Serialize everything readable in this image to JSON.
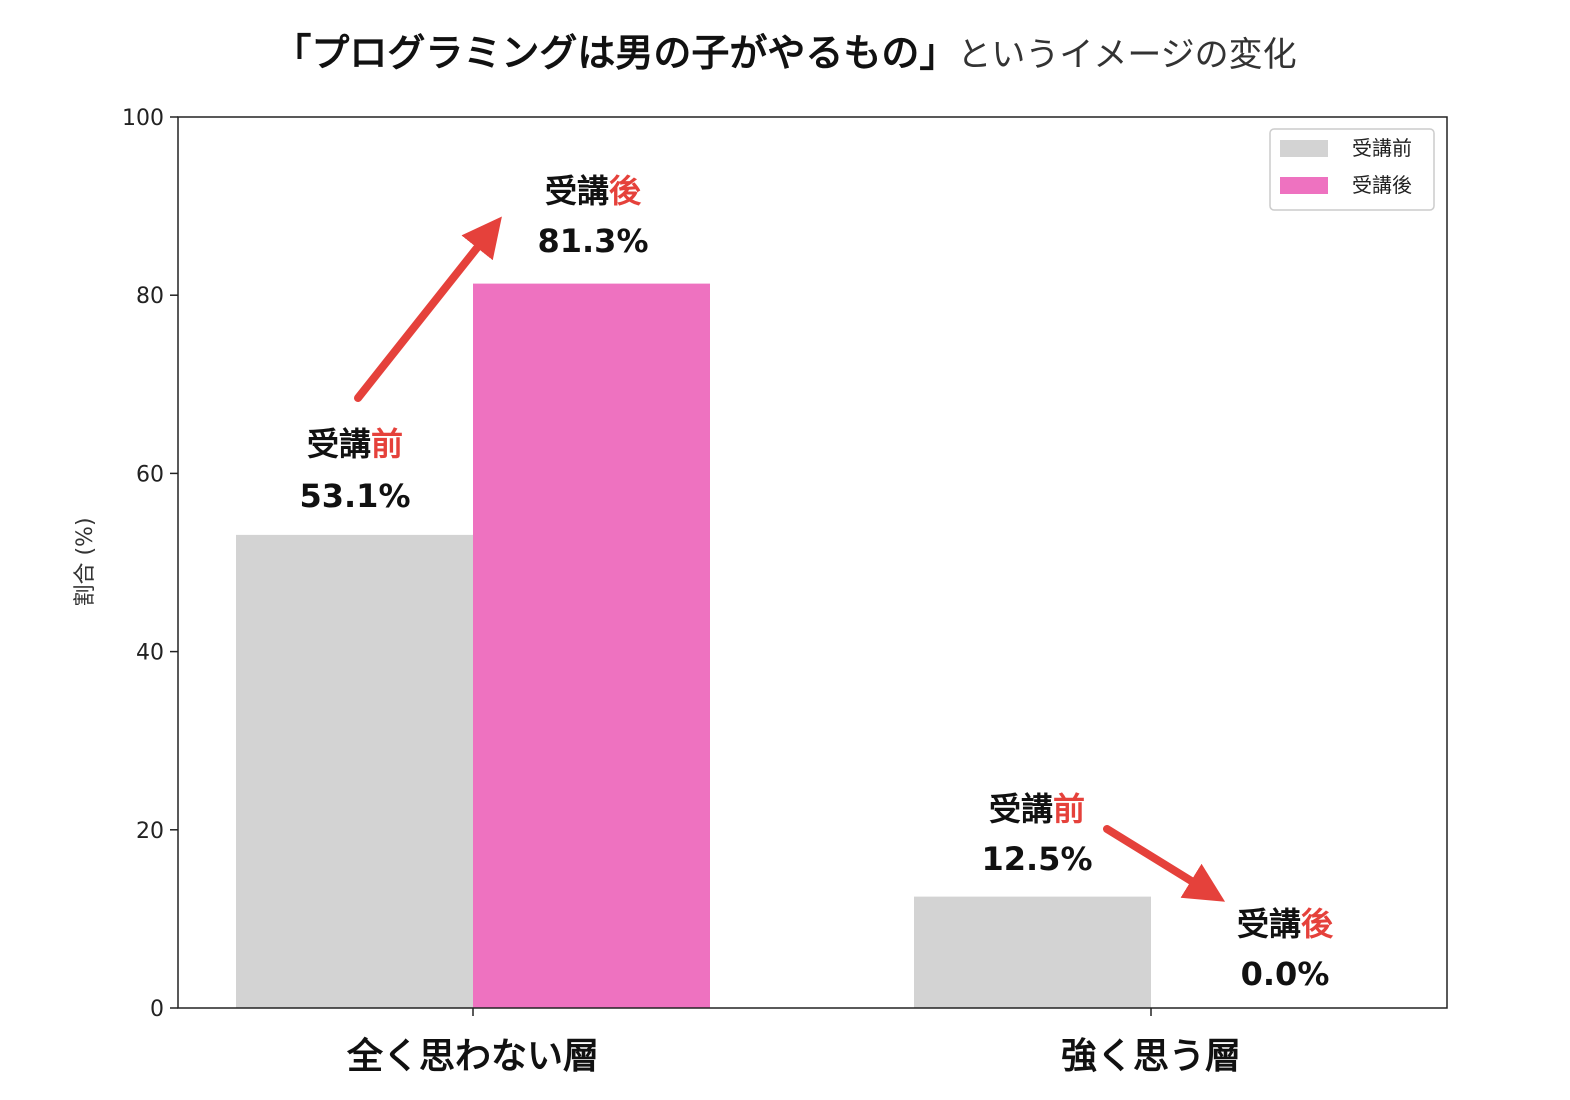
{
  "title": {
    "bold": "「プログラミングは男の子がやるもの」",
    "light": "というイメージの変化"
  },
  "chart_data": {
    "type": "bar",
    "categories": [
      "全く思わない層",
      "強く思う層"
    ],
    "series": [
      {
        "name": "受講前",
        "values": [
          53.1,
          12.5
        ],
        "color": "#d3d3d3"
      },
      {
        "name": "受講後",
        "values": [
          81.3,
          0.0
        ],
        "color": "#ee72c0"
      }
    ],
    "ylabel": "割合 (%)",
    "xlabel": "",
    "ylim": [
      0,
      100
    ],
    "yticks": [
      0,
      20,
      40,
      60,
      80,
      100
    ],
    "grid": false,
    "legend_position": "top-right",
    "annotations": [
      {
        "category": 0,
        "series": 0,
        "base": "受講",
        "accent": "前",
        "value": "53.1%"
      },
      {
        "category": 0,
        "series": 1,
        "base": "受講",
        "accent": "後",
        "value": "81.3%"
      },
      {
        "category": 1,
        "series": 0,
        "base": "受講",
        "accent": "前",
        "value": "12.5%"
      },
      {
        "category": 1,
        "series": 1,
        "base": "受講",
        "accent": "後",
        "value": "0.0%"
      }
    ],
    "arrow_color": "#e5413b"
  }
}
